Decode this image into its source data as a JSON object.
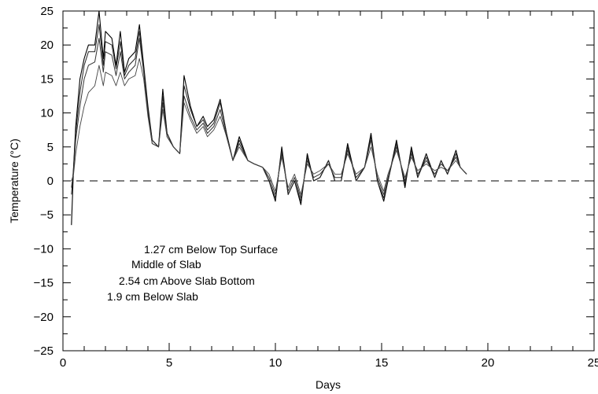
{
  "chart_data": {
    "type": "line",
    "xlabel": "Days",
    "ylabel": "Temperature (°C)",
    "xlim": [
      0,
      25
    ],
    "ylim": [
      -25,
      25
    ],
    "xticks": [
      0,
      5,
      10,
      15,
      20,
      25
    ],
    "yticks": [
      -25,
      -20,
      -15,
      -10,
      -5,
      0,
      5,
      10,
      15,
      20,
      25
    ],
    "grid": false,
    "reference_line": {
      "y": 0,
      "style": "dashed"
    },
    "legend": {
      "placement": "lower-left",
      "entries": [
        "1.27 cm Below Top Surface",
        "Middle of Slab",
        "2.54 cm Above Slab Bottom",
        "1.9 cm Below Slab"
      ]
    },
    "series": [
      {
        "x": [
          0.4,
          0.5,
          0.6,
          0.8,
          1.0,
          1.2,
          1.5,
          1.7,
          1.9,
          2.0,
          2.3,
          2.5,
          2.7,
          2.9,
          3.1,
          3.4,
          3.6,
          3.8,
          4.0,
          4.2,
          4.5,
          4.7,
          4.9,
          5.2,
          5.5,
          5.7,
          6.0,
          6.3,
          6.6,
          6.8,
          7.1,
          7.4,
          7.7,
          8.0,
          8.3,
          8.7,
          9.0,
          9.4,
          9.7,
          10.0,
          10.3,
          10.6,
          10.9,
          11.2,
          11.5,
          11.8,
          12.1,
          12.5,
          12.8,
          13.1,
          13.4,
          13.8,
          14.2,
          14.5,
          14.8,
          15.1,
          15.3,
          15.7,
          16.1,
          16.4,
          16.7,
          17.1,
          17.5,
          17.8,
          18.1,
          18.5,
          18.7,
          19.0
        ],
        "values": [
          -6.5,
          2,
          8,
          15,
          18,
          20,
          20,
          25,
          18,
          22,
          21,
          17,
          22,
          16,
          18,
          19,
          23,
          17,
          11,
          6,
          5,
          13.5,
          7,
          5,
          4,
          15.5,
          11,
          8,
          9.5,
          8,
          9,
          12,
          7,
          3,
          6.5,
          3,
          2.5,
          2,
          0,
          -3,
          5,
          -2,
          0,
          -3.5,
          4,
          0,
          0.5,
          3,
          0,
          0,
          5.5,
          0,
          2,
          7,
          0,
          -3,
          0,
          6,
          -1,
          5,
          0.5,
          4,
          0.5,
          3,
          1,
          4.5,
          2,
          1
        ]
      },
      {
        "x": [
          0.4,
          0.5,
          0.6,
          0.8,
          1.0,
          1.2,
          1.5,
          1.7,
          1.9,
          2.0,
          2.3,
          2.5,
          2.7,
          2.9,
          3.1,
          3.4,
          3.6,
          3.8,
          4.0,
          4.2,
          4.5,
          4.7,
          4.9,
          5.2,
          5.5,
          5.7,
          6.0,
          6.3,
          6.6,
          6.8,
          7.1,
          7.4,
          7.7,
          8.0,
          8.3,
          8.7,
          9.0,
          9.4,
          9.7,
          10.0,
          10.3,
          10.6,
          10.9,
          11.2,
          11.5,
          11.8,
          12.1,
          12.5,
          12.8,
          13.1,
          13.4,
          13.8,
          14.2,
          14.5,
          14.8,
          15.1,
          15.3,
          15.7,
          16.1,
          16.4,
          16.7,
          17.1,
          17.5,
          17.8,
          18.1,
          18.5,
          18.7,
          19.0
        ],
        "values": [
          -2,
          2,
          7,
          13,
          17,
          19,
          19,
          23,
          17,
          20.5,
          20,
          16.5,
          20.5,
          15.5,
          17,
          18,
          22,
          16.5,
          10.5,
          6,
          5,
          12.5,
          7,
          5,
          4,
          14,
          10.5,
          8,
          9,
          7.5,
          8.5,
          11.5,
          7,
          3,
          6,
          3,
          2.5,
          2,
          0,
          -2.5,
          4.5,
          -2,
          0,
          -3,
          3.5,
          0,
          0.5,
          3,
          0,
          0,
          5,
          0,
          2,
          6.5,
          0,
          -2.5,
          0,
          5.5,
          -0.5,
          4.5,
          0.5,
          3.5,
          0.5,
          3,
          1,
          4,
          2,
          1
        ]
      },
      {
        "x": [
          0.4,
          0.5,
          0.6,
          0.8,
          1.0,
          1.2,
          1.5,
          1.7,
          1.9,
          2.0,
          2.3,
          2.5,
          2.7,
          2.9,
          3.1,
          3.4,
          3.6,
          3.8,
          4.0,
          4.2,
          4.5,
          4.7,
          4.9,
          5.2,
          5.5,
          5.7,
          6.0,
          6.3,
          6.6,
          6.8,
          7.1,
          7.4,
          7.7,
          8.0,
          8.3,
          8.7,
          9.0,
          9.4,
          9.7,
          10.0,
          10.3,
          10.6,
          10.9,
          11.2,
          11.5,
          11.8,
          12.1,
          12.5,
          12.8,
          13.1,
          13.4,
          13.8,
          14.2,
          14.5,
          14.8,
          15.1,
          15.3,
          15.7,
          16.1,
          16.4,
          16.7,
          17.1,
          17.5,
          17.8,
          18.1,
          18.5,
          18.7,
          19.0
        ],
        "values": [
          -1,
          1.5,
          6,
          11,
          15,
          17,
          17.5,
          21,
          16,
          19,
          18.5,
          15.5,
          19,
          15,
          16,
          17,
          21,
          16,
          10,
          5.5,
          5,
          11.5,
          6.5,
          5,
          4,
          12.5,
          9.5,
          7.5,
          8.5,
          7,
          8,
          10.5,
          6.5,
          3,
          5.5,
          3,
          2.5,
          2,
          0.5,
          -2,
          4,
          -1.5,
          0.5,
          -2.5,
          3,
          0.5,
          1,
          2.5,
          0.5,
          0.5,
          4.5,
          0.5,
          2,
          6,
          0.5,
          -2,
          0.5,
          5,
          0,
          4,
          1,
          3,
          1,
          2.5,
          1.5,
          3.5,
          2,
          1
        ]
      },
      {
        "x": [
          0.4,
          0.5,
          0.6,
          0.8,
          1.0,
          1.2,
          1.5,
          1.7,
          1.9,
          2.0,
          2.3,
          2.5,
          2.7,
          2.9,
          3.1,
          3.4,
          3.6,
          3.8,
          4.0,
          4.2,
          4.5,
          4.7,
          4.9,
          5.2,
          5.5,
          5.7,
          6.0,
          6.3,
          6.6,
          6.8,
          7.1,
          7.4,
          7.7,
          8.0,
          8.3,
          8.7,
          9.0,
          9.4,
          9.7,
          10.0,
          10.3,
          10.6,
          10.9,
          11.2,
          11.5,
          11.8,
          12.1,
          12.5,
          12.8,
          13.1,
          13.4,
          13.8,
          14.2,
          14.5,
          14.8,
          15.1,
          15.3,
          15.7,
          16.1,
          16.4,
          16.7,
          17.1,
          17.5,
          17.8,
          18.1,
          18.5,
          18.7,
          19.0
        ],
        "values": [
          0,
          1,
          4,
          8,
          11,
          13,
          14,
          17,
          14,
          16,
          15.5,
          14,
          16,
          14,
          15,
          15.5,
          18,
          15,
          9.5,
          5.5,
          5,
          10.5,
          6.5,
          5,
          4,
          11.5,
          9,
          7,
          8,
          6.5,
          7.5,
          9.5,
          6.5,
          3,
          5,
          3,
          2.5,
          2,
          1,
          -1.5,
          3.5,
          -1,
          1,
          -2,
          2.5,
          1,
          1.5,
          2.5,
          1,
          1,
          4,
          1,
          2,
          5,
          1,
          -1.5,
          1,
          4.5,
          0.5,
          3.5,
          1.5,
          2.5,
          1.5,
          2,
          1.5,
          3,
          2,
          1
        ]
      }
    ]
  }
}
